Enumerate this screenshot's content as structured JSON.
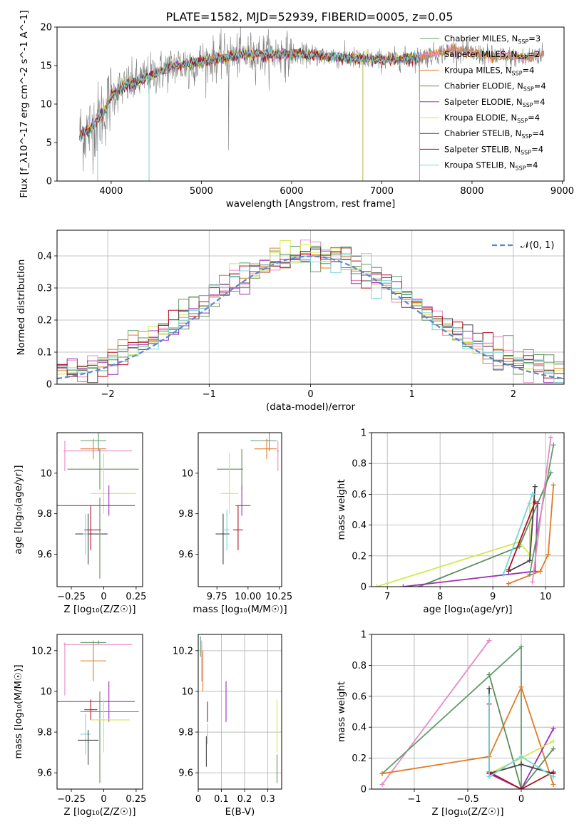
{
  "title": "PLATE=1582, MJD=52939, FIBERID=0005, z=0.05",
  "colors": {
    "chabrier_miles": "#5f9e6e",
    "salpeter_miles": "#e88bc3",
    "kroupa_miles": "#e07b28",
    "chabrier_elodie": "#5b8f5b",
    "salpeter_elodie": "#9c30b5",
    "kroupa_elodie": "#d4e84a",
    "chabrier_stelib": "#444444",
    "salpeter_stelib": "#b01020",
    "kroupa_stelib": "#78d6d8",
    "normal_curve": "#5b87d1",
    "data_spectrum": "#808080"
  },
  "chart_data": [
    {
      "id": "spectrum",
      "type": "line",
      "title": "PLATE=1582, MJD=52939, FIBERID=0005, z=0.05",
      "xlabel": "wavelength [Angstrom, rest frame]",
      "ylabel": "Flux [f_λ10^-17 erg cm^-2 s^-1 A^-1]",
      "xlim": [
        3400,
        9020
      ],
      "ylim": [
        0,
        20
      ],
      "xticks": [
        4000,
        5000,
        6000,
        7000,
        8000,
        9000
      ],
      "yticks": [
        0,
        5,
        10,
        15,
        20
      ],
      "legend_position": "top-right",
      "legend": [
        {
          "label": "Chabrier MILES, N",
          "sub": "SSP",
          "suffix": "=3",
          "color": "#5f9e6e"
        },
        {
          "label": "Salpeter MILES, N",
          "sub": "SSP",
          "suffix": "=2",
          "color": "#e88bc3"
        },
        {
          "label": "Kroupa MILES, N",
          "sub": "SSP",
          "suffix": "=4",
          "color": "#e07b28"
        },
        {
          "label": "Chabrier ELODIE, N",
          "sub": "SSP",
          "suffix": "=4",
          "color": "#5b8f5b"
        },
        {
          "label": "Salpeter ELODIE, N",
          "sub": "SSP",
          "suffix": "=4",
          "color": "#9c30b5"
        },
        {
          "label": "Kroupa ELODIE, N",
          "sub": "SSP",
          "suffix": "=4",
          "color": "#d4e84a"
        },
        {
          "label": "Chabrier STELIB, N",
          "sub": "SSP",
          "suffix": "=4",
          "color": "#444444"
        },
        {
          "label": "Salpeter STELIB, N",
          "sub": "SSP",
          "suffix": "=4",
          "color": "#b01020"
        },
        {
          "label": "Kroupa STELIB, N",
          "sub": "SSP",
          "suffix": "=4",
          "color": "#78d6d8"
        }
      ],
      "continuum": {
        "x": [
          3650,
          3750,
          3850,
          3950,
          4000,
          4100,
          4200,
          4300,
          4500,
          4700,
          5000,
          5300,
          5600,
          6000,
          6300,
          6600,
          7000,
          7400,
          7800,
          8200,
          8600,
          8800
        ],
        "y": [
          6.0,
          6.5,
          8.0,
          9.5,
          11.0,
          12.0,
          12.5,
          13.0,
          14.0,
          15.0,
          15.5,
          16.2,
          16.5,
          16.5,
          16.3,
          16.0,
          15.7,
          16.0,
          17.0,
          16.2,
          16.0,
          16.6
        ]
      }
    },
    {
      "id": "residuals",
      "type": "histogram",
      "xlabel": "(data-model)/error",
      "ylabel": "Normed distribution",
      "xlim": [
        -2.5,
        2.5
      ],
      "ylim": [
        0,
        0.48
      ],
      "xticks": [
        -2,
        -1,
        0,
        1,
        2
      ],
      "yticks": [
        0.0,
        0.1,
        0.2,
        0.3,
        0.4
      ],
      "legend_position": "top-right",
      "normal_label": "𝒩(0, 1)",
      "bin_width": 0.1
    },
    {
      "id": "age_vs_z",
      "type": "errorbar",
      "xlabel": "Z [log₁₀(Z/Z☉)]",
      "ylabel": "age  [log₁₀(age/yr)]",
      "xlim": [
        -0.36,
        0.3
      ],
      "ylim": [
        9.44,
        10.2
      ],
      "xticks": [
        -0.25,
        0.0,
        0.25
      ],
      "yticks": [
        9.6,
        9.8,
        10.0
      ],
      "points": [
        {
          "model": "salpeter_miles",
          "x": -0.3,
          "xerr": [
            0.01,
            0.52
          ],
          "y": 10.11,
          "yerr": [
            0.1,
            0.05
          ]
        },
        {
          "model": "chabrier_miles",
          "x": -0.04,
          "xerr": [
            0.14,
            0.06
          ],
          "y": 10.16,
          "yerr": [
            0.05,
            0.05
          ]
        },
        {
          "model": "kroupa_miles",
          "x": -0.08,
          "xerr": [
            0.1,
            0.1
          ],
          "y": 10.12,
          "yerr": [
            0.05,
            0.05
          ]
        },
        {
          "model": "chabrier_elodie",
          "x": -0.03,
          "xerr": [
            0.25,
            0.3
          ],
          "y": 10.02,
          "yerr": [
            0.1,
            0.1
          ]
        },
        {
          "model": "kroupa_elodie",
          "x": 0.0,
          "xerr": [
            0.1,
            0.25
          ],
          "y": 9.9,
          "yerr": [
            0.1,
            0.2
          ]
        },
        {
          "model": "salpeter_elodie",
          "x": 0.04,
          "xerr": [
            0.4,
            0.2
          ],
          "y": 9.84,
          "yerr": [
            0.05,
            0.1
          ]
        },
        {
          "model": "chabrier_stelib",
          "x": -0.12,
          "xerr": [
            0.1,
            0.15
          ],
          "y": 9.7,
          "yerr": [
            0.15,
            0.1
          ]
        },
        {
          "model": "salpeter_stelib",
          "x": -0.1,
          "xerr": [
            0.05,
            0.08
          ],
          "y": 9.72,
          "yerr": [
            0.1,
            0.12
          ]
        },
        {
          "model": "kroupa_stelib",
          "x": -0.14,
          "xerr": [
            0.02,
            0.02
          ],
          "y": 9.7,
          "yerr": [
            0.1,
            0.1
          ]
        },
        {
          "model": "chabrier_elodie",
          "x": -0.03,
          "xerr": [
            0.01,
            0.01
          ],
          "y": 9.7,
          "yerr": [
            0.22,
            0.18
          ]
        }
      ]
    },
    {
      "id": "age_vs_mass",
      "type": "errorbar",
      "xlabel": "mass [log₁₀(M/M☉)]",
      "ylabel": "",
      "xlim": [
        9.6,
        10.27
      ],
      "ylim": [
        9.44,
        10.2
      ],
      "xticks": [
        9.75,
        10.0,
        10.25
      ],
      "xticklabels": [
        "9.75",
        "10.00",
        "10.25"
      ],
      "yticks": [
        9.6,
        9.8,
        10.0
      ],
      "points": [
        {
          "model": "chabrier_miles",
          "x": 10.17,
          "xerr": [
            0.15,
            0.06
          ],
          "y": 10.16,
          "yerr": [
            0.05,
            0.05
          ]
        },
        {
          "model": "kroupa_miles",
          "x": 10.15,
          "xerr": [
            0.1,
            0.08
          ],
          "y": 10.12,
          "yerr": [
            0.05,
            0.05
          ]
        },
        {
          "model": "salpeter_miles",
          "x": 10.24,
          "xerr": [
            0.01,
            0.01
          ],
          "y": 10.11,
          "yerr": [
            0.1,
            0.05
          ]
        },
        {
          "model": "chabrier_elodie",
          "x": 9.95,
          "xerr": [
            0.2,
            0.01
          ],
          "y": 10.02,
          "yerr": [
            0.1,
            0.1
          ]
        },
        {
          "model": "kroupa_elodie",
          "x": 9.85,
          "xerr": [
            0.07,
            0.07
          ],
          "y": 9.9,
          "yerr": [
            0.1,
            0.2
          ]
        },
        {
          "model": "salpeter_elodie",
          "x": 9.95,
          "xerr": [
            0.05,
            0.07
          ],
          "y": 9.84,
          "yerr": [
            0.05,
            0.1
          ]
        },
        {
          "model": "chabrier_stelib",
          "x": 9.8,
          "xerr": [
            0.06,
            0.05
          ],
          "y": 9.7,
          "yerr": [
            0.15,
            0.1
          ]
        },
        {
          "model": "salpeter_stelib",
          "x": 9.92,
          "xerr": [
            0.04,
            0.04
          ],
          "y": 9.72,
          "yerr": [
            0.1,
            0.12
          ]
        },
        {
          "model": "kroupa_stelib",
          "x": 9.83,
          "xerr": [
            0.04,
            0.02
          ],
          "y": 9.72,
          "yerr": [
            0.1,
            0.1
          ]
        }
      ]
    },
    {
      "id": "weight_vs_age",
      "type": "line",
      "xlabel": "age  [log₁₀(age/yr)]",
      "ylabel": "mass weight",
      "xlim": [
        6.7,
        10.35
      ],
      "ylim": [
        0,
        1.0
      ],
      "xticks": [
        7,
        8,
        9,
        10
      ],
      "yticks": [
        0.0,
        0.2,
        0.4,
        0.6,
        0.8,
        1.0
      ],
      "series": [
        {
          "model": "kroupa_elodie",
          "x": [
            6.8,
            9.5,
            9.7,
            9.7
          ],
          "y": [
            0.0,
            0.29,
            0.21,
            0.54
          ]
        },
        {
          "model": "chabrier_elodie",
          "x": [
            7.6,
            9.5,
            10.1
          ],
          "y": [
            0.0,
            0.26,
            0.74
          ]
        },
        {
          "model": "salpeter_elodie",
          "x": [
            7.3,
            9.8,
            9.85
          ],
          "y": [
            0.0,
            0.1,
            0.54
          ]
        },
        {
          "model": "kroupa_miles",
          "x": [
            9.3,
            9.9,
            10.05,
            10.15
          ],
          "y": [
            0.02,
            0.1,
            0.21,
            0.66
          ]
        },
        {
          "model": "chabrier_miles",
          "x": [
            9.7,
            10.15
          ],
          "y": [
            0.08,
            0.92
          ]
        },
        {
          "model": "salpeter_miles",
          "x": [
            9.75,
            10.1
          ],
          "y": [
            0.03,
            0.97
          ]
        },
        {
          "model": "chabrier_stelib",
          "x": [
            9.3,
            9.7,
            9.8
          ],
          "y": [
            0.1,
            0.17,
            0.65
          ]
        },
        {
          "model": "salpeter_stelib",
          "x": [
            9.3,
            9.8
          ],
          "y": [
            0.11,
            0.55
          ]
        },
        {
          "model": "kroupa_stelib",
          "x": [
            9.2,
            9.75
          ],
          "y": [
            0.08,
            0.6
          ]
        }
      ]
    },
    {
      "id": "mass_vs_z",
      "type": "errorbar",
      "xlabel": "Z [log₁₀(Z/Z☉)]",
      "ylabel": "mass [log₁₀(M/M☉)]",
      "xlim": [
        -0.36,
        0.3
      ],
      "ylim": [
        9.52,
        10.28
      ],
      "xticks": [
        -0.25,
        0.0,
        0.25
      ],
      "yticks": [
        9.6,
        9.8,
        10.0,
        10.2
      ],
      "points": [
        {
          "model": "salpeter_miles",
          "x": -0.3,
          "xerr": [
            0.01,
            0.52
          ],
          "y": 10.23,
          "yerr": [
            0.25,
            0.01
          ]
        },
        {
          "model": "chabrier_miles",
          "x": -0.04,
          "xerr": [
            0.14,
            0.06
          ],
          "y": 10.24,
          "yerr": [
            0.01,
            0.01
          ]
        },
        {
          "model": "kroupa_miles",
          "x": -0.08,
          "xerr": [
            0.1,
            0.1
          ],
          "y": 10.15,
          "yerr": [
            0.1,
            0.1
          ]
        },
        {
          "model": "salpeter_elodie",
          "x": 0.04,
          "xerr": [
            0.4,
            0.2
          ],
          "y": 9.95,
          "yerr": [
            0.1,
            0.1
          ]
        },
        {
          "model": "salpeter_stelib",
          "x": -0.1,
          "xerr": [
            0.05,
            0.05
          ],
          "y": 9.91,
          "yerr": [
            0.05,
            0.05
          ]
        },
        {
          "model": "chabrier_elodie",
          "x": -0.03,
          "xerr": [
            0.15,
            0.3
          ],
          "y": 9.9,
          "yerr": [
            0.35,
            0.1
          ]
        },
        {
          "model": "kroupa_elodie",
          "x": 0.0,
          "xerr": [
            0.1,
            0.2
          ],
          "y": 9.86,
          "yerr": [
            0.16,
            0.1
          ]
        },
        {
          "model": "kroupa_stelib",
          "x": -0.14,
          "xerr": [
            0.04,
            0.04
          ],
          "y": 9.79,
          "yerr": [
            0.1,
            0.1
          ]
        },
        {
          "model": "chabrier_stelib",
          "x": -0.12,
          "xerr": [
            0.08,
            0.08
          ],
          "y": 9.76,
          "yerr": [
            0.12,
            0.05
          ]
        }
      ]
    },
    {
      "id": "mass_vs_ebv",
      "type": "errorbar",
      "xlabel": "E(B-V)",
      "ylabel": "",
      "xlim": [
        0.0,
        0.36
      ],
      "ylim": [
        9.52,
        10.28
      ],
      "xticks": [
        0.0,
        0.1,
        0.2,
        0.3
      ],
      "yticks": [
        9.6,
        9.8,
        10.0,
        10.2
      ],
      "points": [
        {
          "model": "chabrier_miles",
          "x": 0.01,
          "y": 10.22,
          "yerr": [
            0.05,
            0.05
          ]
        },
        {
          "model": "salpeter_miles",
          "x": 0.015,
          "y": 10.15,
          "yerr": [
            0.1,
            0.1
          ]
        },
        {
          "model": "kroupa_miles",
          "x": 0.02,
          "y": 10.1,
          "yerr": [
            0.1,
            0.1
          ]
        },
        {
          "model": "salpeter_elodie",
          "x": 0.12,
          "y": 9.95,
          "yerr": [
            0.1,
            0.1
          ]
        },
        {
          "model": "salpeter_stelib",
          "x": 0.04,
          "y": 9.9,
          "yerr": [
            0.05,
            0.05
          ]
        },
        {
          "model": "kroupa_elodie",
          "x": 0.34,
          "y": 9.86,
          "yerr": [
            0.16,
            0.1
          ]
        },
        {
          "model": "chabrier_elodie",
          "x": 0.34,
          "y": 9.65,
          "yerr": [
            0.1,
            0.04
          ]
        },
        {
          "model": "kroupa_stelib",
          "x": 0.04,
          "y": 9.79,
          "yerr": [
            0.05,
            0.05
          ]
        },
        {
          "model": "chabrier_stelib",
          "x": 0.035,
          "y": 9.73,
          "yerr": [
            0.1,
            0.05
          ]
        }
      ]
    },
    {
      "id": "weight_vs_z",
      "type": "line",
      "xlabel": "Z [log₁₀(Z/Z☉)]",
      "ylabel": "mass weight",
      "xlim": [
        -1.4,
        0.4
      ],
      "ylim": [
        0,
        1.0
      ],
      "xticks": [
        -1.0,
        -0.5,
        0.0
      ],
      "yticks": [
        0.0,
        0.2,
        0.4,
        0.6,
        0.8,
        1.0
      ],
      "series": [
        {
          "model": "salpeter_miles",
          "x": [
            -1.3,
            -0.3
          ],
          "y": [
            0.03,
            0.96
          ]
        },
        {
          "model": "chabrier_miles",
          "x": [
            -1.3,
            0.0,
            0.0
          ],
          "y": [
            0.1,
            0.92,
            0.0
          ]
        },
        {
          "model": "kroupa_miles",
          "x": [
            -1.3,
            -0.3,
            0.0,
            0.3
          ],
          "y": [
            0.1,
            0.21,
            0.66,
            0.03
          ]
        },
        {
          "model": "chabrier_elodie",
          "x": [
            -0.3,
            0.0,
            0.3
          ],
          "y": [
            0.74,
            0.0,
            0.26
          ]
        },
        {
          "model": "salpeter_elodie",
          "x": [
            -0.3,
            0.0,
            0.3
          ],
          "y": [
            0.1,
            0.0,
            0.39
          ]
        },
        {
          "model": "kroupa_elodie",
          "x": [
            -0.3,
            0.0,
            0.3
          ],
          "y": [
            0.1,
            0.2,
            0.31
          ]
        },
        {
          "model": "chabrier_stelib",
          "x": [
            -0.3,
            -0.3,
            0.0,
            0.3
          ],
          "y": [
            0.65,
            0.1,
            0.16,
            0.1
          ]
        },
        {
          "model": "salpeter_stelib",
          "x": [
            -0.3,
            -0.3,
            0.0,
            0.3
          ],
          "y": [
            0.55,
            0.11,
            0.0,
            0.11
          ]
        },
        {
          "model": "kroupa_stelib",
          "x": [
            -0.3,
            -0.3,
            0.0,
            0.3
          ],
          "y": [
            0.6,
            0.08,
            0.21,
            0.08
          ]
        }
      ]
    }
  ]
}
